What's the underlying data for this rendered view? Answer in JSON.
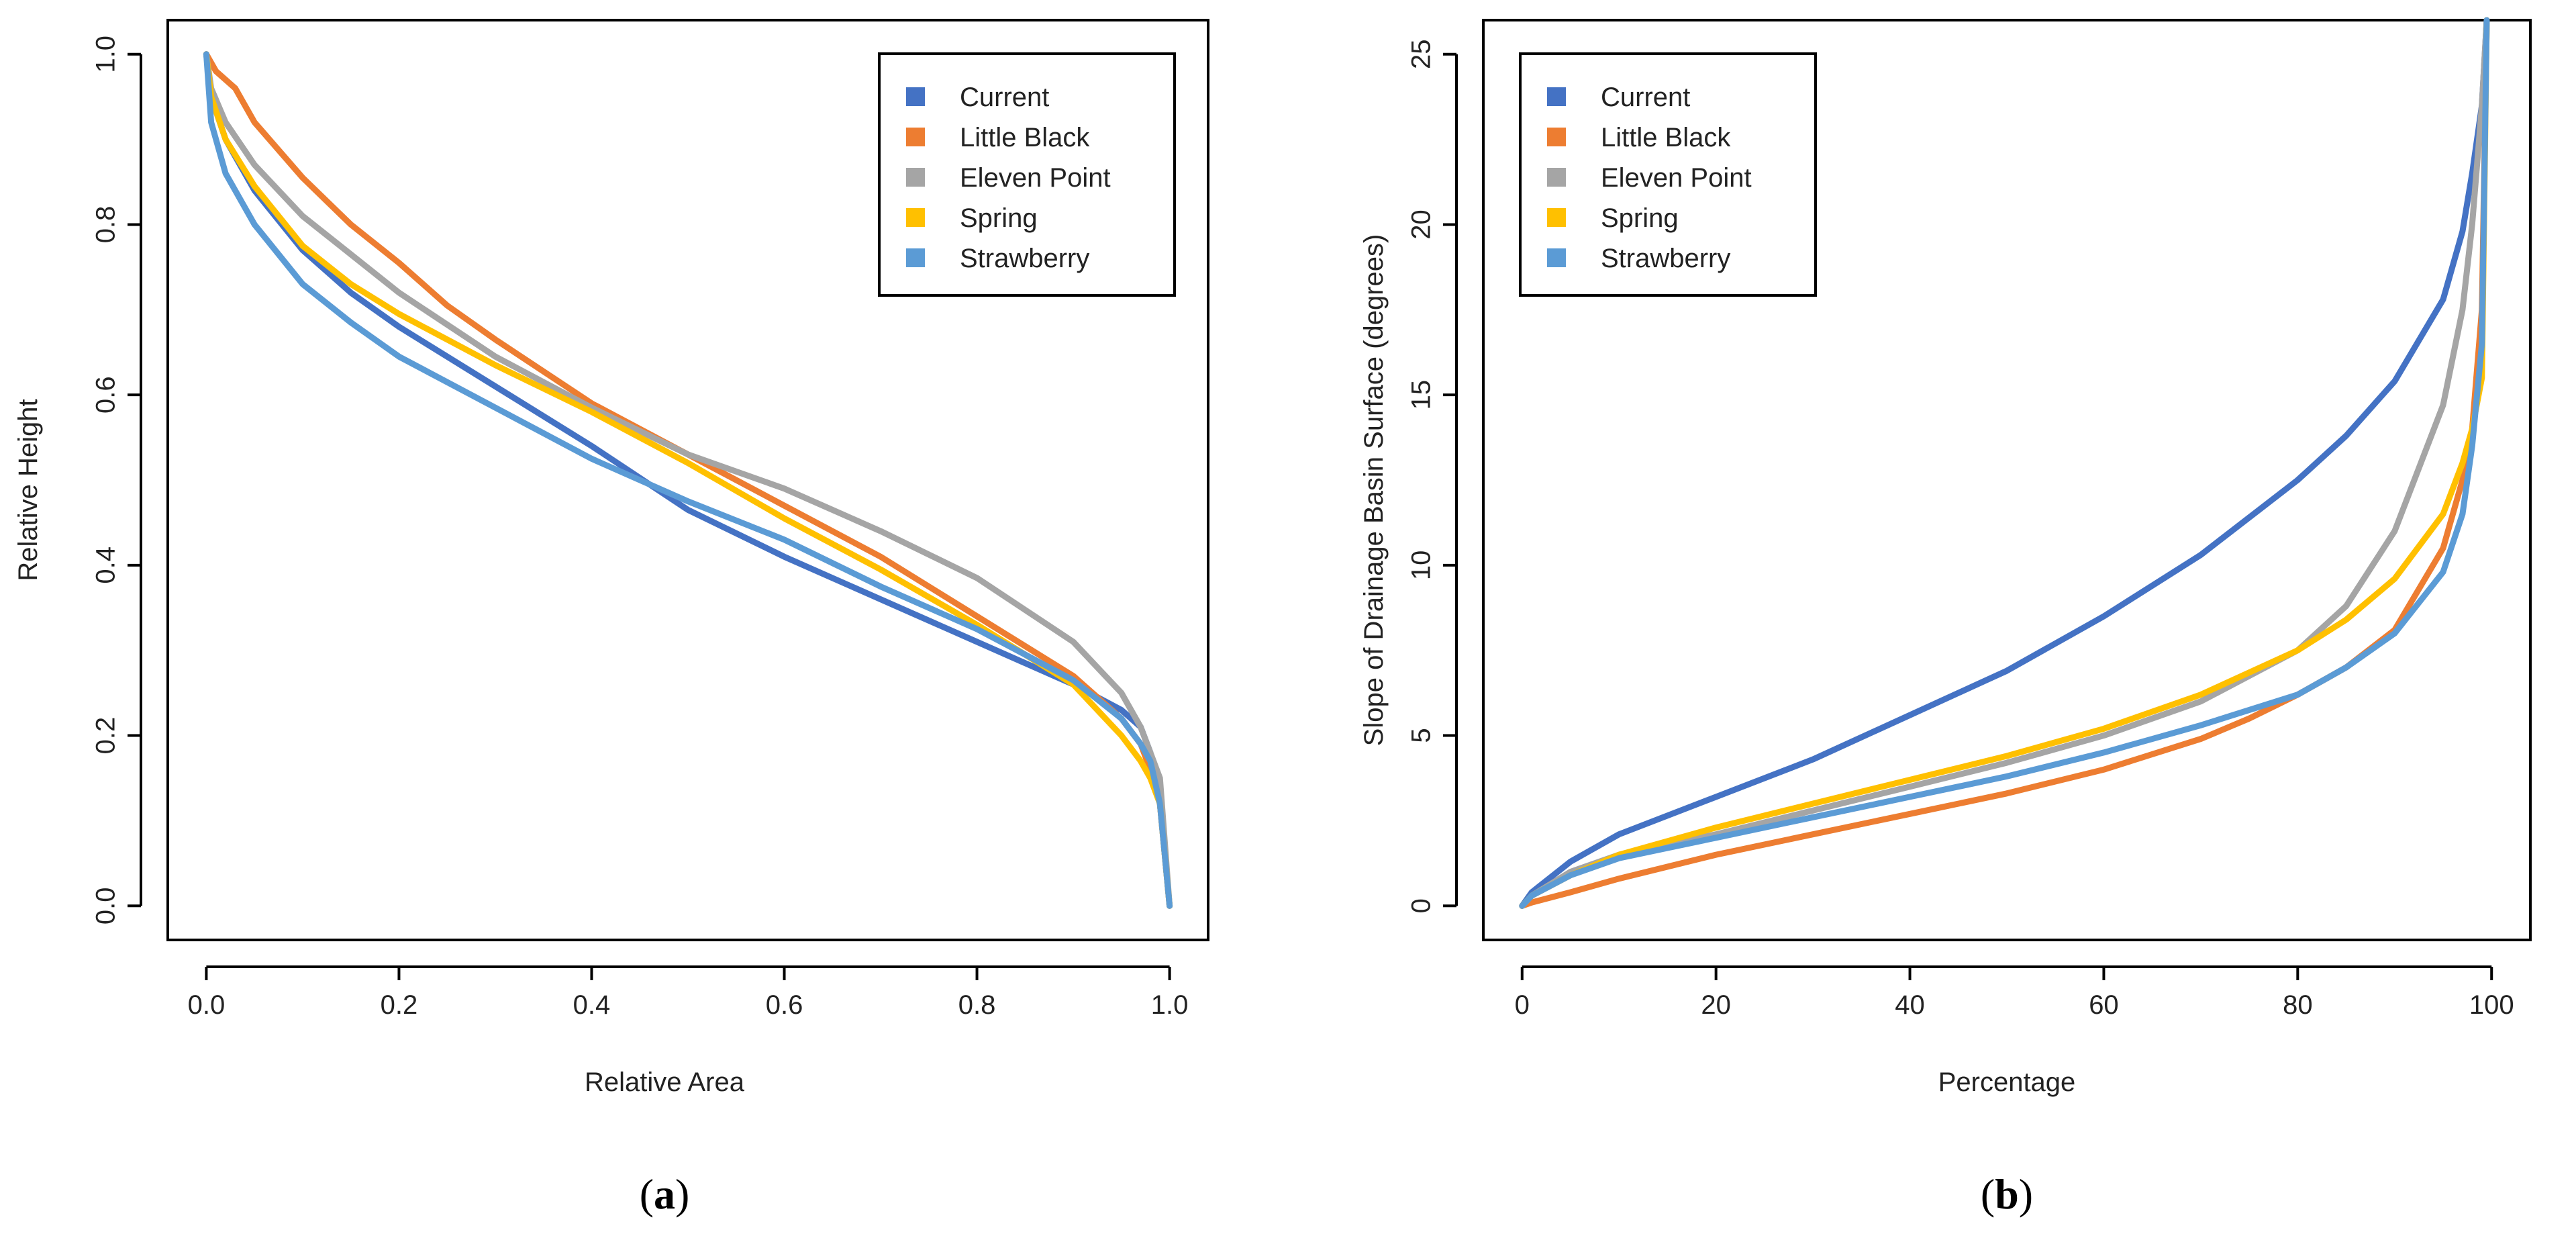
{
  "colors": {
    "Current": "#4472C4",
    "Little Black": "#ED7D31",
    "Eleven Point": "#A5A5A5",
    "Spring": "#FFC000",
    "Strawberry": "#5B9BD5"
  },
  "panels": [
    {
      "label_open": "(",
      "label_letter": "a",
      "label_close": ")"
    },
    {
      "label_open": "(",
      "label_letter": "b",
      "label_close": ")"
    }
  ],
  "chart_data": [
    {
      "type": "line",
      "title": "",
      "xlabel": "Relative Area",
      "ylabel": "Relative Height",
      "xlim": [
        -0.04,
        1.04
      ],
      "ylim": [
        -0.04,
        1.04
      ],
      "xticks": [
        0.0,
        0.2,
        0.4,
        0.6,
        0.8,
        1.0
      ],
      "xtick_labels": [
        "0.0",
        "0.2",
        "0.4",
        "0.6",
        "0.8",
        "1.0"
      ],
      "yticks": [
        0.0,
        0.2,
        0.4,
        0.6,
        0.8,
        1.0
      ],
      "ytick_labels": [
        "0.0",
        "0.2",
        "0.4",
        "0.6",
        "0.8",
        "1.0"
      ],
      "legend_position": "top-right",
      "series": [
        {
          "name": "Current",
          "x": [
            0,
            0.005,
            0.02,
            0.05,
            0.1,
            0.15,
            0.2,
            0.3,
            0.4,
            0.5,
            0.6,
            0.7,
            0.8,
            0.9,
            0.95,
            0.97,
            0.98,
            0.99,
            1.0
          ],
          "y": [
            1.0,
            0.95,
            0.9,
            0.84,
            0.77,
            0.72,
            0.68,
            0.61,
            0.54,
            0.465,
            0.41,
            0.36,
            0.31,
            0.26,
            0.23,
            0.21,
            0.18,
            0.12,
            0.0
          ]
        },
        {
          "name": "Little Black",
          "x": [
            0,
            0.01,
            0.03,
            0.05,
            0.1,
            0.15,
            0.2,
            0.25,
            0.3,
            0.4,
            0.5,
            0.6,
            0.7,
            0.8,
            0.9,
            0.95,
            0.97,
            0.98,
            0.99,
            1.0
          ],
          "y": [
            1.0,
            0.98,
            0.96,
            0.92,
            0.855,
            0.8,
            0.755,
            0.705,
            0.665,
            0.59,
            0.53,
            0.47,
            0.41,
            0.34,
            0.27,
            0.22,
            0.19,
            0.16,
            0.12,
            0.0
          ]
        },
        {
          "name": "Eleven Point",
          "x": [
            0,
            0.005,
            0.02,
            0.05,
            0.1,
            0.15,
            0.2,
            0.3,
            0.4,
            0.5,
            0.6,
            0.7,
            0.8,
            0.9,
            0.95,
            0.97,
            0.98,
            0.99,
            1.0
          ],
          "y": [
            1.0,
            0.96,
            0.92,
            0.87,
            0.81,
            0.765,
            0.72,
            0.645,
            0.585,
            0.53,
            0.49,
            0.44,
            0.385,
            0.31,
            0.25,
            0.21,
            0.18,
            0.15,
            0.0
          ]
        },
        {
          "name": "Spring",
          "x": [
            0,
            0.005,
            0.02,
            0.05,
            0.1,
            0.15,
            0.2,
            0.3,
            0.4,
            0.5,
            0.6,
            0.7,
            0.8,
            0.9,
            0.95,
            0.97,
            0.98,
            0.99,
            1.0
          ],
          "y": [
            1.0,
            0.95,
            0.9,
            0.845,
            0.775,
            0.73,
            0.695,
            0.635,
            0.58,
            0.52,
            0.455,
            0.395,
            0.33,
            0.26,
            0.2,
            0.17,
            0.15,
            0.12,
            0.0
          ]
        },
        {
          "name": "Strawberry",
          "x": [
            0,
            0.005,
            0.02,
            0.05,
            0.1,
            0.15,
            0.2,
            0.3,
            0.4,
            0.5,
            0.6,
            0.7,
            0.8,
            0.9,
            0.95,
            0.97,
            0.98,
            0.99,
            1.0
          ],
          "y": [
            1.0,
            0.92,
            0.86,
            0.8,
            0.73,
            0.685,
            0.645,
            0.585,
            0.525,
            0.475,
            0.43,
            0.375,
            0.325,
            0.265,
            0.22,
            0.19,
            0.17,
            0.12,
            0.0
          ]
        }
      ]
    },
    {
      "type": "line",
      "title": "",
      "xlabel": "Percentage",
      "ylabel": "Slope of Drainage Basin Surface (degrees)",
      "xlim": [
        -4,
        104
      ],
      "ylim": [
        -1,
        26
      ],
      "xticks": [
        0,
        20,
        40,
        60,
        80,
        100
      ],
      "xtick_labels": [
        "0",
        "20",
        "40",
        "60",
        "80",
        "100"
      ],
      "yticks": [
        0,
        5,
        10,
        15,
        20,
        25
      ],
      "ytick_labels": [
        "0",
        "5",
        "10",
        "15",
        "20",
        "25"
      ],
      "legend_position": "top-left",
      "series": [
        {
          "name": "Current",
          "x": [
            0,
            1,
            5,
            10,
            20,
            30,
            40,
            50,
            60,
            70,
            80,
            85,
            90,
            95,
            97,
            98,
            99,
            99.5
          ],
          "y": [
            0,
            0.4,
            1.3,
            2.1,
            3.2,
            4.3,
            5.6,
            6.9,
            8.5,
            10.3,
            12.5,
            13.8,
            15.4,
            17.8,
            19.8,
            21.5,
            23.5,
            26
          ]
        },
        {
          "name": "Little Black",
          "x": [
            0,
            1,
            5,
            10,
            20,
            30,
            40,
            50,
            60,
            70,
            75,
            80,
            85,
            90,
            95,
            97,
            98,
            99,
            99.5
          ],
          "y": [
            0,
            0.1,
            0.4,
            0.8,
            1.5,
            2.1,
            2.7,
            3.3,
            4.0,
            4.9,
            5.5,
            6.2,
            7.0,
            8.1,
            10.5,
            12.5,
            14.0,
            17.5,
            26
          ]
        },
        {
          "name": "Eleven Point",
          "x": [
            0,
            1,
            5,
            10,
            20,
            30,
            40,
            50,
            60,
            70,
            80,
            85,
            90,
            95,
            97,
            98,
            99,
            99.5
          ],
          "y": [
            0,
            0.3,
            1.0,
            1.5,
            2.1,
            2.8,
            3.5,
            4.2,
            5.0,
            6.0,
            7.5,
            8.8,
            11.0,
            14.7,
            17.5,
            20.0,
            23.5,
            26
          ]
        },
        {
          "name": "Spring",
          "x": [
            0,
            1,
            5,
            10,
            20,
            30,
            40,
            50,
            60,
            70,
            80,
            85,
            90,
            95,
            97,
            98,
            99,
            99.5
          ],
          "y": [
            0,
            0.3,
            0.9,
            1.5,
            2.3,
            3.0,
            3.7,
            4.4,
            5.2,
            6.2,
            7.5,
            8.4,
            9.6,
            11.5,
            13.0,
            14.0,
            15.5,
            26
          ]
        },
        {
          "name": "Strawberry",
          "x": [
            0,
            1,
            5,
            10,
            20,
            30,
            40,
            50,
            60,
            70,
            80,
            85,
            90,
            95,
            97,
            98,
            99,
            99.5
          ],
          "y": [
            0,
            0.3,
            0.9,
            1.4,
            2.0,
            2.6,
            3.2,
            3.8,
            4.5,
            5.3,
            6.2,
            7.0,
            8.0,
            9.8,
            11.5,
            13.5,
            16.5,
            26
          ]
        }
      ]
    }
  ]
}
